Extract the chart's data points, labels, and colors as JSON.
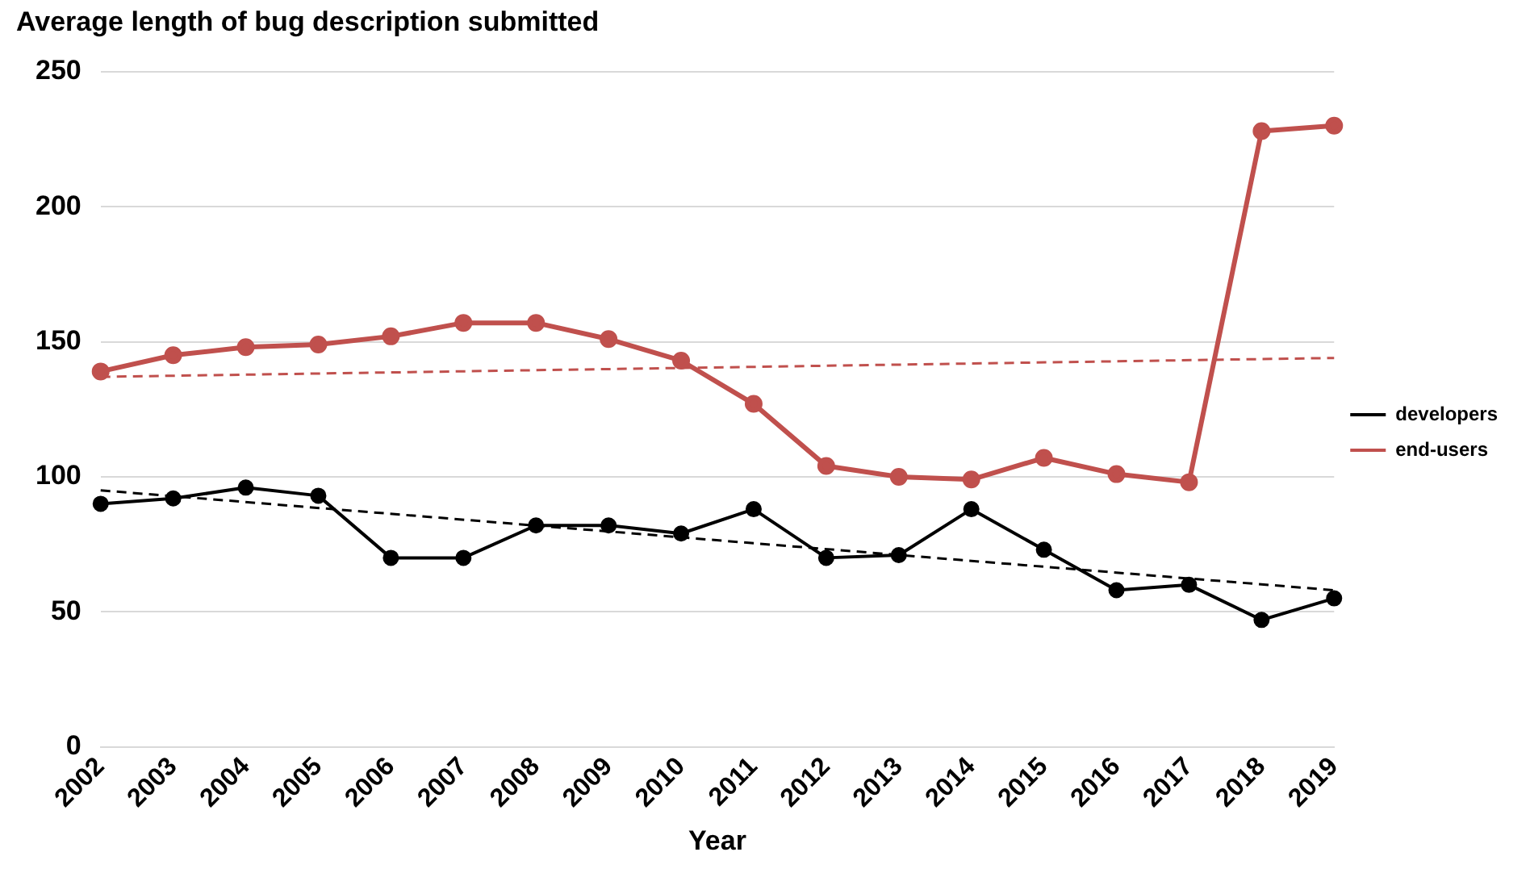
{
  "chart_data": {
    "type": "line",
    "title": "Average length of bug description submitted",
    "xlabel": "Year",
    "categories": [
      "2002",
      "2003",
      "2004",
      "2005",
      "2006",
      "2007",
      "2008",
      "2009",
      "2010",
      "2011",
      "2012",
      "2013",
      "2014",
      "2015",
      "2016",
      "2017",
      "2018",
      "2019"
    ],
    "series": [
      {
        "name": "developers",
        "color": "#000000",
        "values": [
          90,
          92,
          96,
          93,
          70,
          70,
          82,
          82,
          79,
          88,
          70,
          71,
          88,
          73,
          58,
          60,
          47,
          55
        ],
        "marker": "circle",
        "line_style": "solid"
      },
      {
        "name": "end-users",
        "color": "#c0504d",
        "values": [
          139,
          145,
          148,
          149,
          152,
          157,
          157,
          151,
          143,
          127,
          104,
          100,
          99,
          107,
          101,
          98,
          228,
          230
        ],
        "marker": "circle",
        "line_style": "solid"
      },
      {
        "color": "#000000",
        "values": [
          95,
          null,
          null,
          null,
          null,
          null,
          null,
          null,
          null,
          null,
          null,
          null,
          null,
          null,
          null,
          null,
          null,
          58
        ],
        "marker": "none",
        "line_style": "dashed"
      },
      {
        "color": "#c0504d",
        "values": [
          137,
          null,
          null,
          null,
          null,
          null,
          null,
          null,
          null,
          null,
          null,
          null,
          null,
          null,
          null,
          null,
          null,
          144
        ],
        "marker": "none",
        "line_style": "dashed"
      }
    ],
    "ylim": [
      0,
      250
    ],
    "yticks": [
      0,
      50,
      100,
      150,
      200,
      250
    ],
    "grid": "y",
    "legend": "right"
  }
}
